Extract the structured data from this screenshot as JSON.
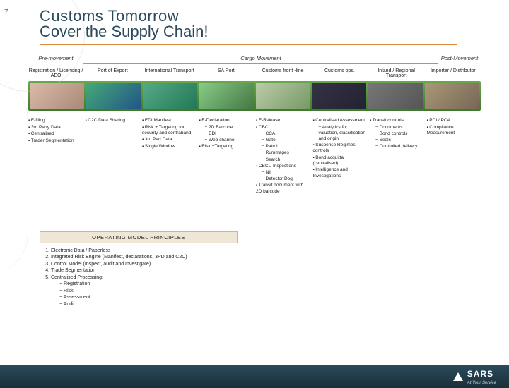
{
  "slide_number": "7",
  "title": {
    "line1": "Customs Tomorrow",
    "line2": "Cover the Supply Chain!"
  },
  "phases": {
    "pre": "Pre-movement",
    "cargo": "Cargo Movement",
    "post": "Post-Movement"
  },
  "columns": [
    "Registration / Licensing / AEO",
    "Port of Export",
    "International Transport",
    "SA Port",
    "Customs front -line",
    "Customs ops.",
    "Inland / Regional Transport",
    "Importer / Distributor"
  ],
  "thumbs": [
    {
      "name": "registration-thumb",
      "bg": "linear-gradient(135deg,#dba 0%,#a87 100%)"
    },
    {
      "name": "export-port-thumb",
      "bg": "linear-gradient(135deg,#4a7 0%,#258 100%)"
    },
    {
      "name": "intl-transport-thumb",
      "bg": "linear-gradient(135deg,#5a8 0%,#275 100%)"
    },
    {
      "name": "sa-port-thumb",
      "bg": "linear-gradient(135deg,#8c8 0%,#474 100%)"
    },
    {
      "name": "customs-frontline-thumb",
      "bg": "linear-gradient(135deg,#bca 0%,#796 100%)"
    },
    {
      "name": "customs-ops-thumb",
      "bg": "linear-gradient(135deg,#334 0%,#223 100%)"
    },
    {
      "name": "inland-transport-thumb",
      "bg": "linear-gradient(135deg,#777 0%,#555 100%)"
    },
    {
      "name": "importer-thumb",
      "bg": "linear-gradient(135deg,#a97 0%,#765 100%)"
    }
  ],
  "details": [
    [
      {
        "t": "E-filing",
        "k": "b"
      },
      {
        "t": "3rd Party Data",
        "k": "b"
      },
      {
        "t": "Centralised",
        "k": "b"
      },
      {
        "t": "Trader Segmentation",
        "k": "b"
      }
    ],
    [
      {
        "t": "C2C Data Sharing",
        "k": "b"
      }
    ],
    [
      {
        "t": "EDI Manifest",
        "k": "b"
      },
      {
        "t": "Risk + Targeting for security and contraband",
        "k": "b"
      },
      {
        "t": "3rd Part Data",
        "k": "b"
      },
      {
        "t": "Single Window",
        "k": "b"
      }
    ],
    [
      {
        "t": "E-Declaration",
        "k": "b"
      },
      {
        "t": "2D Barcode",
        "k": "d"
      },
      {
        "t": "EDI",
        "k": "d"
      },
      {
        "t": "Web channel",
        "k": "d"
      },
      {
        "t": "Risk +Targeting",
        "k": "b"
      }
    ],
    [
      {
        "t": "E-Release",
        "k": "b"
      },
      {
        "t": "CBCU",
        "k": "b"
      },
      {
        "t": "CCA",
        "k": "d"
      },
      {
        "t": "Gate",
        "k": "d"
      },
      {
        "t": "Patrol",
        "k": "d"
      },
      {
        "t": "Rummages",
        "k": "d"
      },
      {
        "t": "Search",
        "k": "d"
      },
      {
        "t": "CBCU Inspections",
        "k": "b"
      },
      {
        "t": "NII",
        "k": "d"
      },
      {
        "t": "Detector Dog",
        "k": "d"
      },
      {
        "t": "Transit document with 2D barcode",
        "k": "b"
      }
    ],
    [
      {
        "t": "Centralised Assessment",
        "k": "b"
      },
      {
        "t": "Analytics for valuation, classification and origin",
        "k": "d"
      },
      {
        "t": "Suspense Regimes controls",
        "k": "b"
      },
      {
        "t": "Bond acquittal (centralised)",
        "k": "b"
      },
      {
        "t": "Intelligence and Investigations",
        "k": "b"
      }
    ],
    [
      {
        "t": "Transit controls",
        "k": "b"
      },
      {
        "t": "Documents",
        "k": "d"
      },
      {
        "t": "Bond controls",
        "k": "d"
      },
      {
        "t": "Seals",
        "k": "d"
      },
      {
        "t": "Controlled delivery",
        "k": "d"
      }
    ],
    [
      {
        "t": "PCI / PCA",
        "k": "b"
      },
      {
        "t": "Compliance Measurement",
        "k": "b"
      }
    ]
  ],
  "principles": {
    "header": "OPERATING MODEL PRINCIPLES",
    "items": [
      "Electronic Data / Paperless",
      "Integrated Risk Engine (Manifest, declarations, 3PD and C2C)",
      "Control Model (Inspect, audit and Investigate)",
      "Trade Segmentation",
      "Centralised Processing:"
    ],
    "sub5": [
      "Registration",
      "Risk",
      "Assessment",
      "Audit"
    ]
  },
  "footer": {
    "brand": "SARS",
    "tag": "At Your Service"
  }
}
